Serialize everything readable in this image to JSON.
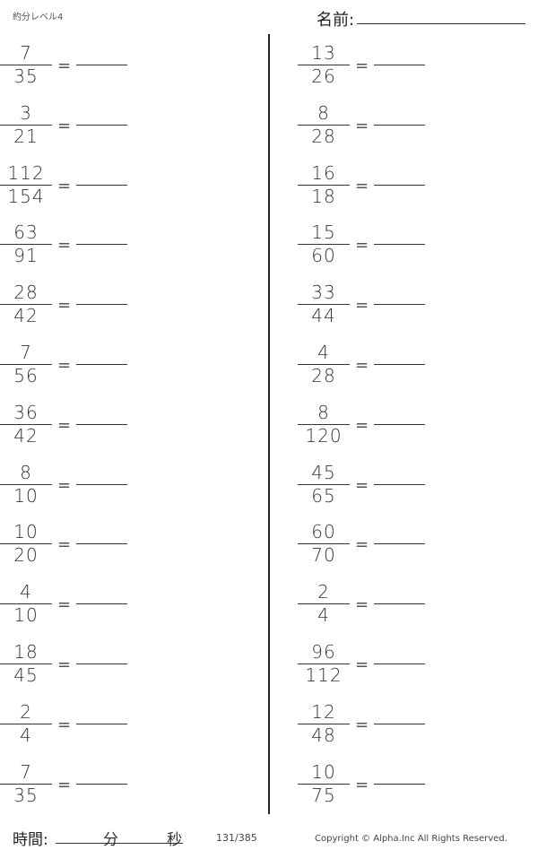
{
  "header": {
    "title": "約分レベル4",
    "name_label": "名前:"
  },
  "problems": {
    "left": [
      [
        "7",
        "35"
      ],
      [
        "3",
        "21"
      ],
      [
        "112",
        "154"
      ],
      [
        "63",
        "91"
      ],
      [
        "28",
        "42"
      ],
      [
        "7",
        "56"
      ],
      [
        "36",
        "42"
      ],
      [
        "8",
        "10"
      ],
      [
        "10",
        "20"
      ],
      [
        "4",
        "10"
      ],
      [
        "18",
        "45"
      ],
      [
        "2",
        "4"
      ],
      [
        "7",
        "35"
      ]
    ],
    "right": [
      [
        "13",
        "26"
      ],
      [
        "8",
        "28"
      ],
      [
        "16",
        "18"
      ],
      [
        "15",
        "60"
      ],
      [
        "33",
        "44"
      ],
      [
        "4",
        "28"
      ],
      [
        "8",
        "120"
      ],
      [
        "45",
        "65"
      ],
      [
        "60",
        "70"
      ],
      [
        "2",
        "4"
      ],
      [
        "96",
        "112"
      ],
      [
        "12",
        "48"
      ],
      [
        "10",
        "75"
      ]
    ],
    "equals": "="
  },
  "footer": {
    "time_label": "時間:",
    "minutes": "分",
    "seconds": "秒",
    "page": "131/385",
    "copyright": "Copyright ©  Alpha.Inc All Rights Reserved."
  }
}
